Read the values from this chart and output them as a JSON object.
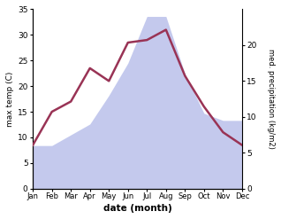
{
  "months": [
    "Jan",
    "Feb",
    "Mar",
    "Apr",
    "May",
    "Jun",
    "Jul",
    "Aug",
    "Sep",
    "Oct",
    "Nov",
    "Dec"
  ],
  "temp": [
    8.5,
    15.0,
    17.0,
    23.5,
    21.0,
    28.5,
    29.0,
    31.0,
    22.0,
    16.0,
    11.0,
    8.5
  ],
  "precip": [
    6.0,
    6.0,
    7.5,
    9.0,
    13.0,
    17.5,
    24.0,
    24.0,
    16.0,
    10.5,
    9.5,
    9.5
  ],
  "temp_ylim": [
    0,
    35
  ],
  "precip_ylim": [
    0,
    25
  ],
  "precip_yticks": [
    0,
    5,
    10,
    15,
    20
  ],
  "temp_yticks": [
    0,
    5,
    10,
    15,
    20,
    25,
    30,
    35
  ],
  "xlabel": "date (month)",
  "ylabel_left": "max temp (C)",
  "ylabel_right": "med. precipitation (kg/m2)",
  "line_color": "#993355",
  "fill_color": "#b0b8e8",
  "fill_alpha": 0.75,
  "bg_color": "#ffffff",
  "line_width": 1.8
}
